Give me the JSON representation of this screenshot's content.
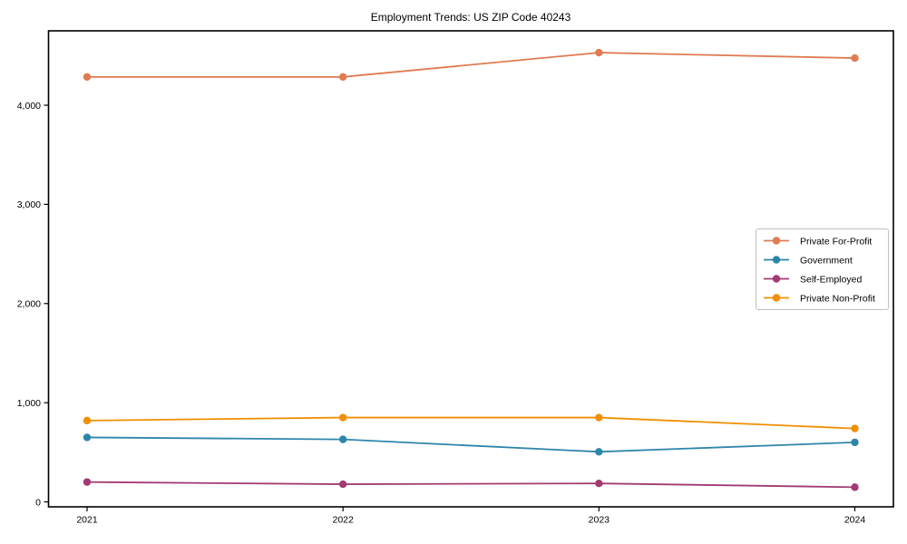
{
  "page": {
    "background_color": "#ffffff",
    "axis_color": "#000000",
    "legend_border_color": "#c0c0c0"
  },
  "chart_data": {
    "type": "line",
    "title": "Employment Trends: US ZIP Code 40243",
    "categories": [
      "2021",
      "2022",
      "2023",
      "2024"
    ],
    "x": [
      2021,
      2022,
      2023,
      2024
    ],
    "series": [
      {
        "name": "Private For-Profit",
        "color": "#E07B52",
        "values": [
          4285,
          4285,
          4530,
          4475
        ]
      },
      {
        "name": "Government",
        "color": "#2E86AB",
        "values": [
          650,
          630,
          505,
          600
        ]
      },
      {
        "name": "Self-Employed",
        "color": "#A23B72",
        "values": [
          200,
          178,
          186,
          148
        ]
      },
      {
        "name": "Private Non-Profit",
        "color": "#F18F01",
        "values": [
          820,
          850,
          850,
          740
        ]
      }
    ],
    "xlabel": "",
    "ylabel": "",
    "ylim": [
      -50,
      4750
    ],
    "yticks": [
      0,
      1000,
      2000,
      3000,
      4000
    ],
    "ytick_labels": [
      "0",
      "1,000",
      "2,000",
      "3,000",
      "4,000"
    ],
    "grid": false,
    "legend_position": "center-right",
    "marker": "circle"
  }
}
